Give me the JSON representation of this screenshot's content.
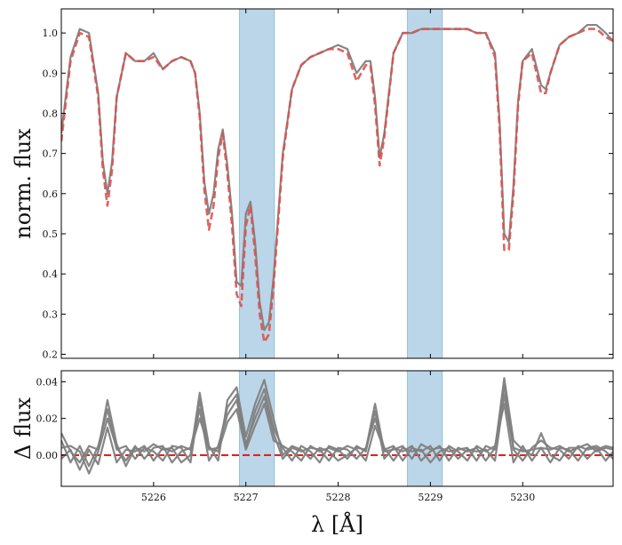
{
  "chart_data": [
    {
      "type": "line",
      "panel": "top",
      "ylabel": "norm. flux",
      "xlabel": "",
      "xlim": [
        5225.0,
        5230.98
      ],
      "ylim": [
        0.19,
        1.06
      ],
      "yticks": [
        0.2,
        0.3,
        0.4,
        0.5,
        0.6,
        0.7,
        0.8,
        0.9,
        1.0
      ],
      "ytick_labels": [
        "0.2",
        "0.3",
        "0.4",
        "0.5",
        "0.6",
        "0.7",
        "0.8",
        "0.9",
        "1.0"
      ],
      "xticks": [
        5226,
        5227,
        5228,
        5229,
        5230
      ],
      "xtick_labels": [
        "",
        "",
        "",
        "",
        ""
      ],
      "shaded_regions": [
        [
          5226.93,
          5227.31
        ],
        [
          5228.75,
          5229.13
        ]
      ],
      "x": [
        5225.0,
        5225.1,
        5225.2,
        5225.3,
        5225.4,
        5225.45,
        5225.5,
        5225.55,
        5225.6,
        5225.7,
        5225.8,
        5225.9,
        5226.0,
        5226.1,
        5226.2,
        5226.3,
        5226.4,
        5226.45,
        5226.5,
        5226.55,
        5226.6,
        5226.65,
        5226.7,
        5226.75,
        5226.8,
        5226.85,
        5226.9,
        5226.95,
        5227.0,
        5227.05,
        5227.1,
        5227.15,
        5227.2,
        5227.25,
        5227.3,
        5227.4,
        5227.5,
        5227.6,
        5227.7,
        5227.8,
        5227.9,
        5228.0,
        5228.1,
        5228.2,
        5228.3,
        5228.35,
        5228.4,
        5228.45,
        5228.5,
        5228.6,
        5228.7,
        5228.8,
        5228.9,
        5229.0,
        5229.1,
        5229.2,
        5229.3,
        5229.4,
        5229.5,
        5229.6,
        5229.7,
        5229.75,
        5229.8,
        5229.85,
        5229.9,
        5229.95,
        5230.0,
        5230.1,
        5230.2,
        5230.25,
        5230.3,
        5230.4,
        5230.5,
        5230.6,
        5230.7,
        5230.8,
        5230.9,
        5230.98
      ],
      "series": [
        {
          "role": "observed",
          "color": "#808080",
          "style": "solid",
          "values": [
            0.75,
            0.94,
            1.01,
            1.0,
            0.85,
            0.68,
            0.6,
            0.68,
            0.84,
            0.95,
            0.93,
            0.93,
            0.95,
            0.91,
            0.93,
            0.94,
            0.93,
            0.9,
            0.8,
            0.63,
            0.55,
            0.6,
            0.71,
            0.76,
            0.67,
            0.55,
            0.38,
            0.37,
            0.55,
            0.58,
            0.48,
            0.33,
            0.26,
            0.28,
            0.39,
            0.7,
            0.86,
            0.92,
            0.94,
            0.95,
            0.96,
            0.97,
            0.96,
            0.9,
            0.93,
            0.93,
            0.84,
            0.69,
            0.75,
            0.95,
            1.0,
            1.0,
            1.01,
            1.01,
            1.01,
            1.01,
            1.01,
            1.01,
            1.0,
            1.0,
            0.95,
            0.78,
            0.5,
            0.48,
            0.62,
            0.83,
            0.93,
            0.96,
            0.87,
            0.86,
            0.9,
            0.97,
            0.99,
            1.0,
            1.02,
            1.02,
            1.0,
            0.98
          ]
        },
        {
          "role": "model",
          "color": "#d9534f",
          "style": "dashed",
          "values": [
            0.73,
            0.93,
            1.0,
            0.99,
            0.84,
            0.66,
            0.57,
            0.66,
            0.84,
            0.95,
            0.93,
            0.93,
            0.94,
            0.91,
            0.93,
            0.94,
            0.93,
            0.9,
            0.79,
            0.61,
            0.51,
            0.57,
            0.69,
            0.75,
            0.65,
            0.52,
            0.35,
            0.32,
            0.52,
            0.57,
            0.45,
            0.3,
            0.23,
            0.25,
            0.37,
            0.69,
            0.86,
            0.92,
            0.94,
            0.95,
            0.96,
            0.96,
            0.95,
            0.88,
            0.92,
            0.92,
            0.82,
            0.67,
            0.74,
            0.95,
            1.0,
            1.0,
            1.01,
            1.01,
            1.01,
            1.01,
            1.01,
            1.01,
            1.0,
            1.0,
            0.94,
            0.76,
            0.46,
            0.46,
            0.6,
            0.82,
            0.93,
            0.95,
            0.85,
            0.85,
            0.9,
            0.97,
            0.99,
            1.0,
            1.01,
            1.01,
            0.99,
            0.98
          ]
        }
      ]
    },
    {
      "type": "line",
      "panel": "bottom",
      "ylabel": "Δ flux",
      "xlabel": "λ [Å]",
      "xlim": [
        5225.0,
        5230.98
      ],
      "ylim": [
        -0.017,
        0.046
      ],
      "yticks": [
        0.0,
        0.02,
        0.04
      ],
      "ytick_labels": [
        "0.00",
        "0.02",
        "0.04"
      ],
      "xticks": [
        5226,
        5227,
        5228,
        5229,
        5230
      ],
      "xtick_labels": [
        "5226",
        "5227",
        "5228",
        "5229",
        "5230"
      ],
      "shaded_regions": [
        [
          5226.93,
          5227.31
        ],
        [
          5228.75,
          5229.13
        ]
      ],
      "zero_line": {
        "y": 0.0,
        "color": "#d62728",
        "style": "dashed"
      },
      "x": [
        5225.0,
        5225.1,
        5225.2,
        5225.3,
        5225.4,
        5225.5,
        5225.6,
        5225.7,
        5225.8,
        5225.9,
        5226.0,
        5226.1,
        5226.2,
        5226.3,
        5226.4,
        5226.5,
        5226.6,
        5226.7,
        5226.8,
        5226.9,
        5227.0,
        5227.1,
        5227.2,
        5227.3,
        5227.4,
        5227.5,
        5227.6,
        5227.7,
        5227.8,
        5227.9,
        5228.0,
        5228.1,
        5228.2,
        5228.3,
        5228.4,
        5228.5,
        5228.6,
        5228.7,
        5228.8,
        5228.9,
        5229.0,
        5229.1,
        5229.2,
        5229.3,
        5229.4,
        5229.5,
        5229.6,
        5229.7,
        5229.8,
        5229.9,
        5230.0,
        5230.1,
        5230.2,
        5230.3,
        5230.4,
        5230.5,
        5230.6,
        5230.7,
        5230.8,
        5230.9,
        5230.98
      ],
      "series": [
        {
          "name": "",
          "color": "#808080",
          "values": [
            0.012,
            0.002,
            -0.004,
            0.005,
            0.003,
            0.03,
            0.006,
            -0.006,
            0.004,
            0.002,
            0.006,
            0.003,
            0.004,
            -0.004,
            0.0,
            0.034,
            0.005,
            -0.003,
            0.03,
            0.037,
            0.01,
            0.028,
            0.041,
            0.02,
            0.0,
            0.005,
            0.003,
            -0.002,
            0.004,
            0.002,
            -0.003,
            0.0,
            0.004,
            0.003,
            0.028,
            0.002,
            0.003,
            0.005,
            -0.002,
            0.006,
            0.003,
            0.004,
            0.002,
            0.003,
            0.004,
            -0.003,
            0.005,
            0.003,
            0.042,
            0.008,
            0.003,
            0.0,
            0.012,
            0.0,
            -0.003,
            0.004,
            0.004,
            0.006,
            0.002,
            0.004,
            0.003
          ]
        },
        {
          "name": "",
          "color": "#808080",
          "values": [
            0.008,
            -0.004,
            0.005,
            -0.006,
            0.005,
            0.025,
            0.003,
            0.005,
            -0.002,
            0.004,
            0.002,
            -0.003,
            0.005,
            0.004,
            -0.004,
            0.03,
            0.003,
            0.004,
            0.026,
            0.033,
            0.004,
            0.024,
            0.036,
            0.015,
            0.004,
            -0.003,
            0.005,
            0.002,
            -0.004,
            0.005,
            0.003,
            -0.002,
            0.005,
            0.002,
            0.024,
            -0.002,
            0.004,
            0.002,
            0.005,
            -0.003,
            0.002,
            0.005,
            -0.003,
            0.004,
            0.002,
            0.004,
            -0.003,
            0.004,
            0.038,
            0.003,
            -0.003,
            0.004,
            0.008,
            0.004,
            0.003,
            -0.002,
            0.005,
            0.003,
            0.004,
            -0.003,
            0.002
          ]
        },
        {
          "name": "",
          "color": "#808080",
          "values": [
            0.004,
            0.005,
            0.002,
            -0.01,
            0.002,
            0.02,
            0.004,
            -0.003,
            0.005,
            -0.002,
            0.004,
            0.005,
            -0.004,
            0.002,
            0.004,
            0.025,
            -0.003,
            0.005,
            0.022,
            0.03,
            0.006,
            0.02,
            0.032,
            0.012,
            -0.002,
            0.004,
            0.002,
            0.004,
            0.003,
            -0.003,
            0.004,
            0.003,
            -0.002,
            0.004,
            0.02,
            0.004,
            -0.003,
            0.004,
            0.002,
            0.003,
            -0.004,
            0.002,
            0.004,
            -0.002,
            0.003,
            0.002,
            0.003,
            -0.003,
            0.033,
            0.004,
            0.002,
            0.003,
            0.004,
            -0.004,
            0.004,
            0.003,
            -0.003,
            0.004,
            0.005,
            0.002,
            -0.002
          ]
        },
        {
          "name": "",
          "color": "#808080",
          "values": [
            -0.002,
            0.003,
            -0.008,
            0.003,
            -0.005,
            0.015,
            -0.004,
            0.003,
            0.002,
            0.005,
            -0.003,
            0.004,
            0.002,
            0.005,
            0.003,
            0.02,
            0.004,
            0.002,
            0.018,
            0.025,
            0.003,
            0.016,
            0.028,
            0.008,
            0.005,
            0.002,
            -0.003,
            0.005,
            0.002,
            0.004,
            0.002,
            0.005,
            0.003,
            -0.003,
            0.016,
            0.003,
            0.005,
            -0.003,
            0.004,
            0.002,
            0.005,
            -0.003,
            0.005,
            0.002,
            -0.003,
            0.005,
            0.002,
            0.005,
            0.028,
            -0.004,
            0.005,
            -0.003,
            0.004,
            0.003,
            0.005,
            0.002,
            0.004,
            -0.002,
            0.003,
            0.005,
            0.004
          ]
        }
      ]
    }
  ]
}
